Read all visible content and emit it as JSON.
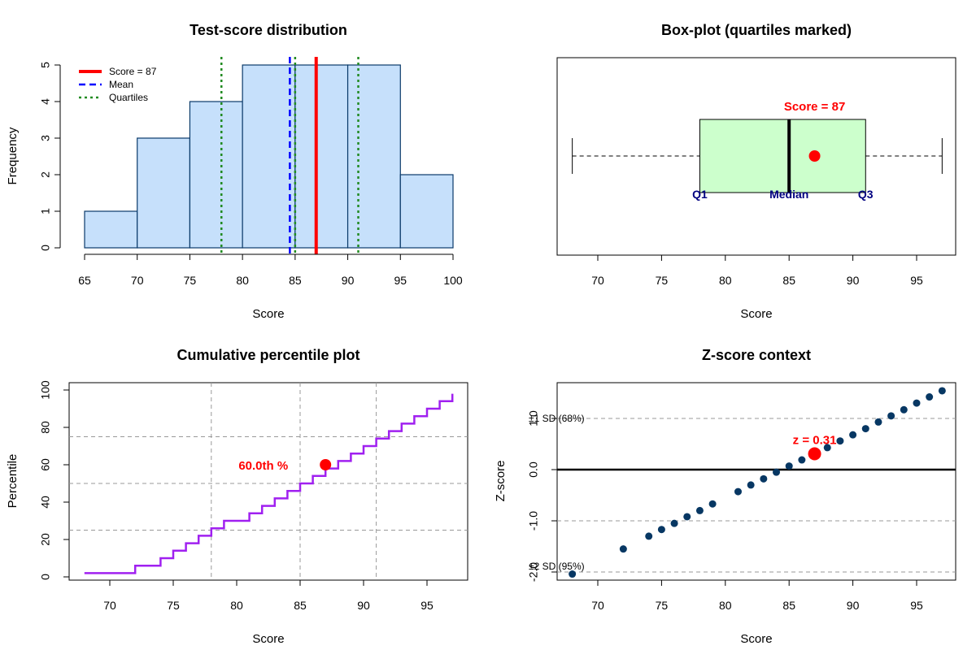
{
  "colors": {
    "hist_fill": "#c6e0fb",
    "hist_stroke": "#0a3a6a",
    "score_line": "#ff0000",
    "mean_line": "#0000ff",
    "quartile_line": "#228b22",
    "box_fill": "#ccffcc",
    "cdf_line": "#a020f0",
    "z_points": "#073763",
    "grid": "#999999",
    "highlight": "#ff0000",
    "annot_navy": "#000080"
  },
  "chart_data": [
    {
      "type": "bar",
      "subtype": "histogram",
      "title": "Test-score distribution",
      "xlabel": "Score",
      "ylabel": "Frequency",
      "bin_edges": [
        65,
        70,
        75,
        80,
        85,
        90,
        95,
        100
      ],
      "values": [
        1,
        3,
        4,
        5,
        5,
        5,
        2
      ],
      "xlim": [
        65,
        100
      ],
      "ylim": [
        0,
        5
      ],
      "xticks": [
        "65",
        "70",
        "75",
        "80",
        "85",
        "90",
        "95",
        "100"
      ],
      "yticks": [
        "0",
        "1",
        "2",
        "3",
        "4",
        "5"
      ],
      "reference_lines": {
        "score": 87,
        "mean": 84.5,
        "quartiles": [
          78,
          85,
          91
        ]
      },
      "legend": {
        "position": "top-left",
        "entries": [
          "Score = 87",
          "Mean",
          "Quartiles"
        ]
      }
    },
    {
      "type": "box",
      "title": "Box-plot  (quartiles marked)",
      "xlabel": "Score",
      "min": 68,
      "q1": 78,
      "median": 85,
      "q3": 91,
      "max": 97,
      "score": 87,
      "xlim": [
        66.8,
        98.2
      ],
      "xticks": [
        "70",
        "75",
        "80",
        "85",
        "90",
        "95"
      ],
      "annotations": {
        "score_label": "Score = 87",
        "q1_label": "Q1",
        "median_label": "Median",
        "q3_label": "Q3"
      }
    },
    {
      "type": "line",
      "subtype": "step",
      "title": "Cumulative percentile plot",
      "xlabel": "Score",
      "ylabel": "Percentile",
      "x": [
        68,
        72,
        74,
        75,
        76,
        77,
        78,
        79,
        81,
        82,
        83,
        84,
        85,
        86,
        87,
        88,
        89,
        90,
        91,
        92,
        93,
        94,
        95,
        96,
        97
      ],
      "y": [
        2,
        6,
        10,
        14,
        18,
        22,
        26,
        30,
        34,
        38,
        42,
        46,
        50,
        54,
        58,
        62,
        66,
        70,
        74,
        78,
        82,
        86,
        90,
        94,
        98
      ],
      "xlim": [
        66.8,
        98.2
      ],
      "ylim": [
        -1,
        102
      ],
      "xticks": [
        "70",
        "75",
        "80",
        "85",
        "90",
        "95"
      ],
      "yticks": [
        "0",
        "20",
        "40",
        "60",
        "80",
        "100"
      ],
      "hlines": [
        25,
        50,
        75
      ],
      "vlines": [
        78,
        85,
        91
      ],
      "highlight": {
        "x": 87,
        "y": 60
      },
      "highlight_label": "60.0th %"
    },
    {
      "type": "scatter",
      "title": "Z-score context",
      "xlabel": "Score",
      "ylabel": "Z-score",
      "x": [
        68,
        72,
        74,
        75,
        76,
        77,
        78,
        79,
        81,
        82,
        83,
        84,
        85,
        86,
        88,
        89,
        90,
        91,
        92,
        93,
        94,
        95,
        96,
        97
      ],
      "y": [
        -2.04,
        -1.55,
        -1.3,
        -1.17,
        -1.05,
        -0.92,
        -0.8,
        -0.67,
        -0.43,
        -0.3,
        -0.18,
        -0.05,
        0.07,
        0.19,
        0.43,
        0.56,
        0.68,
        0.8,
        0.93,
        1.05,
        1.17,
        1.3,
        1.42,
        1.54
      ],
      "xlim": [
        66.8,
        98.2
      ],
      "ylim": [
        -2.1,
        1.65
      ],
      "xticks": [
        "70",
        "75",
        "80",
        "85",
        "90",
        "95"
      ],
      "yticks": [
        "-2.0",
        "-1.0",
        "0.0",
        "1.0"
      ],
      "hlines": [
        -2,
        -1,
        1
      ],
      "zero_line": 0,
      "sd_labels": [
        "±1 SD (68%)",
        "±2 SD (95%)"
      ],
      "highlight": {
        "x": 87,
        "y": 0.31
      },
      "highlight_label": "z = 0.31"
    }
  ]
}
